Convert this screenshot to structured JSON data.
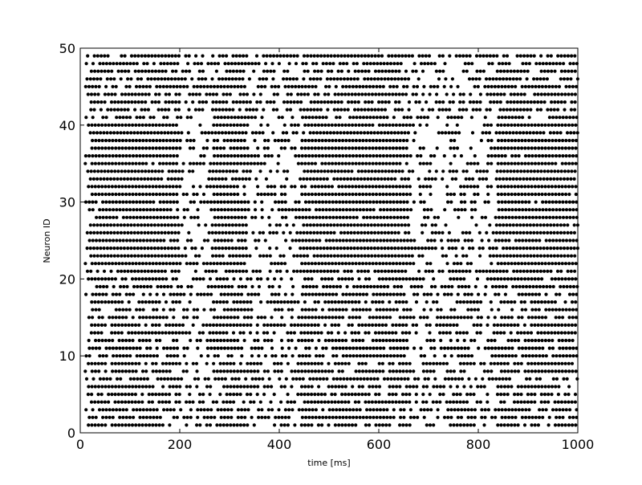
{
  "chart_data": {
    "type": "scatter",
    "title": "",
    "xlabel": "time [ms]",
    "ylabel": "Neuron ID",
    "xlim": [
      0,
      1000
    ],
    "ylim": [
      0,
      50
    ],
    "x_ticks": [
      0,
      200,
      400,
      600,
      800,
      1000
    ],
    "y_ticks": [
      0,
      10,
      20,
      30,
      40,
      50
    ],
    "grid": false,
    "legend": "none",
    "marker_color": "#000000",
    "marker": "filled-circle",
    "neuron_ids": [
      1,
      49
    ],
    "spike_interval_ms": 6.8,
    "high_activity_neurons": [
      22,
      40
    ],
    "population_bursts_ms": [
      [
        20,
        200
      ],
      [
        265,
        335
      ],
      [
        445,
        660
      ],
      [
        835,
        1000
      ]
    ],
    "quiet_periods_ms": [
      [
        200,
        265
      ],
      [
        335,
        445
      ],
      [
        660,
        835
      ]
    ]
  }
}
